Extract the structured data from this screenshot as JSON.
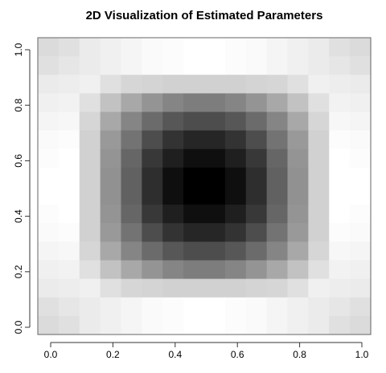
{
  "chart_data": {
    "type": "heatmap",
    "title": "2D Visualization of Estimated Parameters",
    "xlabel": "",
    "ylabel": "",
    "xlim": [
      0,
      1
    ],
    "ylim": [
      0,
      1
    ],
    "x_ticks": [
      "0.0",
      "0.2",
      "0.4",
      "0.6",
      "0.8",
      "1.0"
    ],
    "y_ticks": [
      "0.0",
      "0.2",
      "0.4",
      "0.6",
      "0.8",
      "1.0"
    ],
    "grid": false,
    "legend": "none",
    "color_scale": "grayscale (low = black, high = white)",
    "color_low": "#000000",
    "color_high": "#ffffff",
    "rows_from_top": [
      [
        0.86,
        0.88,
        0.92,
        0.94,
        0.96,
        0.98,
        0.99,
        1.0,
        1.0,
        0.99,
        0.98,
        0.96,
        0.94,
        0.92,
        0.88,
        0.86
      ],
      [
        0.88,
        0.9,
        0.92,
        0.94,
        0.96,
        0.98,
        0.99,
        1.0,
        1.0,
        0.99,
        0.98,
        0.96,
        0.94,
        0.92,
        0.9,
        0.88
      ],
      [
        0.92,
        0.93,
        0.94,
        0.88,
        0.84,
        0.83,
        0.82,
        0.82,
        0.82,
        0.82,
        0.83,
        0.84,
        0.88,
        0.94,
        0.93,
        0.92
      ],
      [
        0.94,
        0.95,
        0.88,
        0.76,
        0.66,
        0.58,
        0.52,
        0.49,
        0.49,
        0.52,
        0.58,
        0.66,
        0.76,
        0.88,
        0.95,
        0.94
      ],
      [
        0.96,
        0.97,
        0.84,
        0.66,
        0.52,
        0.42,
        0.34,
        0.3,
        0.3,
        0.34,
        0.42,
        0.52,
        0.66,
        0.84,
        0.97,
        0.96
      ],
      [
        0.98,
        0.99,
        0.82,
        0.6,
        0.45,
        0.3,
        0.2,
        0.15,
        0.15,
        0.2,
        0.3,
        0.45,
        0.6,
        0.82,
        0.99,
        0.98
      ],
      [
        0.99,
        1.0,
        0.82,
        0.58,
        0.4,
        0.22,
        0.12,
        0.06,
        0.06,
        0.12,
        0.22,
        0.4,
        0.58,
        0.82,
        1.0,
        0.99
      ],
      [
        1.0,
        1.0,
        0.82,
        0.57,
        0.38,
        0.18,
        0.06,
        0.0,
        0.0,
        0.06,
        0.18,
        0.38,
        0.57,
        0.82,
        1.0,
        1.0
      ],
      [
        1.0,
        1.0,
        0.82,
        0.57,
        0.38,
        0.18,
        0.06,
        0.0,
        0.0,
        0.06,
        0.18,
        0.38,
        0.57,
        0.82,
        1.0,
        1.0
      ],
      [
        0.99,
        1.0,
        0.82,
        0.58,
        0.4,
        0.22,
        0.12,
        0.06,
        0.06,
        0.12,
        0.22,
        0.4,
        0.58,
        0.82,
        1.0,
        0.99
      ],
      [
        0.98,
        0.99,
        0.82,
        0.6,
        0.45,
        0.3,
        0.2,
        0.15,
        0.15,
        0.2,
        0.3,
        0.45,
        0.6,
        0.82,
        0.99,
        0.98
      ],
      [
        0.96,
        0.97,
        0.84,
        0.66,
        0.52,
        0.42,
        0.34,
        0.3,
        0.3,
        0.34,
        0.42,
        0.52,
        0.66,
        0.84,
        0.97,
        0.96
      ],
      [
        0.94,
        0.95,
        0.88,
        0.76,
        0.66,
        0.58,
        0.52,
        0.49,
        0.49,
        0.52,
        0.58,
        0.66,
        0.76,
        0.88,
        0.95,
        0.94
      ],
      [
        0.92,
        0.93,
        0.94,
        0.88,
        0.84,
        0.83,
        0.82,
        0.82,
        0.82,
        0.82,
        0.83,
        0.84,
        0.88,
        0.94,
        0.93,
        0.92
      ],
      [
        0.88,
        0.9,
        0.92,
        0.94,
        0.96,
        0.98,
        0.99,
        1.0,
        1.0,
        0.99,
        0.98,
        0.96,
        0.94,
        0.92,
        0.9,
        0.88
      ],
      [
        0.86,
        0.88,
        0.92,
        0.94,
        0.96,
        0.98,
        0.99,
        1.0,
        1.0,
        0.99,
        0.98,
        0.96,
        0.94,
        0.92,
        0.88,
        0.86
      ]
    ]
  }
}
